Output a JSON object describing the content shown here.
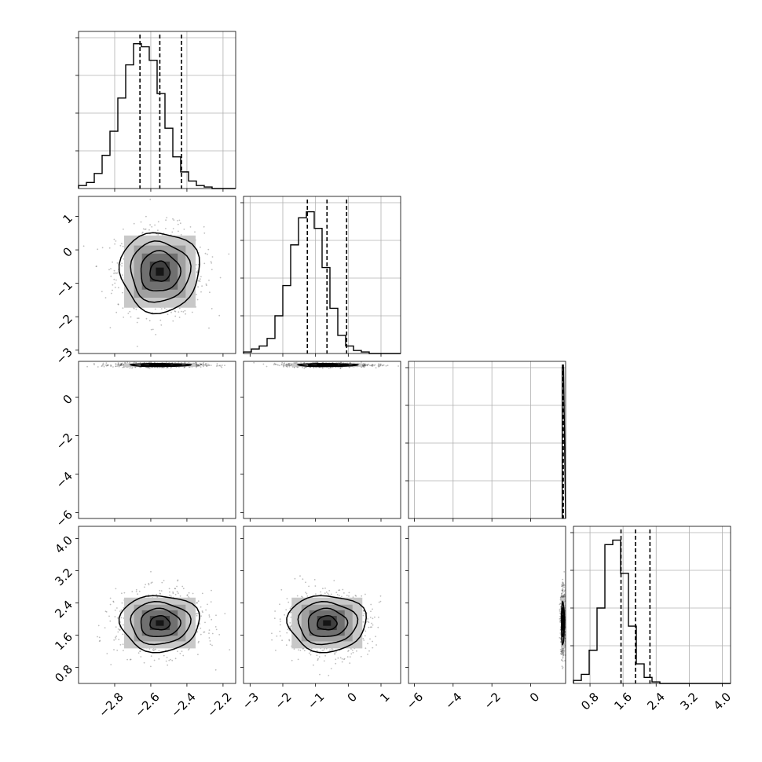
{
  "chart_data": {
    "type": "corner",
    "parameters": 4,
    "axes": [
      {
        "index": 0,
        "range": [
          -3.0,
          -2.13
        ],
        "ticks": [
          -2.8,
          -2.6,
          -2.4,
          -2.2
        ],
        "tick_labels": [
          "−2.8",
          "−2.6",
          "−2.4",
          "−2.2"
        ],
        "median": -2.55,
        "q16": -2.66,
        "q84": -2.43
      },
      {
        "index": 1,
        "range": [
          -3.2,
          1.6
        ],
        "ticks_bottom": [
          -3,
          -2,
          -1,
          0,
          1
        ],
        "tick_labels_bottom": [
          "−3",
          "−2",
          "−1",
          "0",
          "1"
        ],
        "ticks_left": [
          -3,
          -2,
          -1,
          0,
          1
        ],
        "tick_labels_left": [
          "−3",
          "−2",
          "−1",
          "0",
          "1"
        ],
        "median": -0.65,
        "q16": -1.25,
        "q84": -0.05
      },
      {
        "index": 2,
        "range": [
          -6.3,
          1.8
        ],
        "ticks": [
          -6,
          -4,
          -2,
          0
        ],
        "tick_labels": [
          "−6",
          "−4",
          "−2",
          "0"
        ],
        "median": 1.66,
        "q16": 1.64,
        "q84": 1.68
      },
      {
        "index": 3,
        "range": [
          0.4,
          4.2
        ],
        "ticks": [
          0.8,
          1.6,
          2.4,
          3.2,
          4.0
        ],
        "tick_labels": [
          "0.8",
          "1.6",
          "2.4",
          "3.2",
          "4.0"
        ],
        "median": 1.9,
        "q16": 1.55,
        "q84": 2.25
      }
    ],
    "histograms": [
      {
        "param": 0,
        "bins_start": -3.0,
        "bin_width": 0.0435,
        "counts": [
          2,
          4,
          10,
          22,
          38,
          60,
          82,
          96,
          94,
          85,
          63,
          40,
          21,
          11,
          5,
          2,
          1,
          0,
          0,
          0
        ],
        "ymax": 100
      },
      {
        "param": 1,
        "bins_start": -3.2,
        "bin_width": 0.24,
        "counts": [
          1,
          3,
          5,
          10,
          25,
          45,
          72,
          90,
          94,
          83,
          57,
          30,
          12,
          5,
          2,
          1,
          0,
          0,
          0,
          0
        ],
        "ymax": 100
      },
      {
        "param": 2,
        "bins_start": 1.625,
        "bin_width": 0.07,
        "counts": [
          100
        ],
        "ymax": 100
      },
      {
        "param": 3,
        "bins_start": 0.4,
        "bin_width": 0.19,
        "counts": [
          2,
          6,
          22,
          50,
          92,
          95,
          73,
          38,
          13,
          4,
          1,
          0,
          0,
          0,
          0,
          0,
          0,
          0,
          0,
          0
        ],
        "ymax": 100
      }
    ],
    "scatter_2d": [
      {
        "x": 0,
        "y": 1,
        "center": [
          -2.55,
          -0.65
        ],
        "sigma": [
          0.11,
          0.6
        ],
        "contours": [
          0.5,
          1.0,
          1.5,
          2.0
        ]
      },
      {
        "x": 0,
        "y": 2,
        "center": [
          -2.55,
          1.66
        ],
        "sigma": [
          0.11,
          0.05
        ],
        "contours": [
          0.5,
          1.0,
          1.5
        ]
      },
      {
        "x": 1,
        "y": 2,
        "center": [
          -0.65,
          1.66
        ],
        "sigma": [
          0.6,
          0.05
        ],
        "contours": [
          0.5,
          1.0,
          1.5
        ]
      },
      {
        "x": 0,
        "y": 3,
        "center": [
          -2.55,
          1.9
        ],
        "sigma": [
          0.11,
          0.35
        ],
        "contours": [
          0.5,
          1.0,
          1.5,
          2.0
        ]
      },
      {
        "x": 1,
        "y": 3,
        "center": [
          -0.65,
          1.9
        ],
        "sigma": [
          0.6,
          0.35
        ],
        "contours": [
          0.5,
          1.0,
          1.5,
          2.0
        ]
      },
      {
        "x": 2,
        "y": 3,
        "center": [
          1.66,
          1.9
        ],
        "sigma": [
          0.05,
          0.35
        ],
        "contours": [
          0.5,
          1.0,
          1.5
        ]
      }
    ],
    "colors": {
      "frame": "#000000",
      "grid": "#b0b0b0",
      "density_dark": "#111111",
      "density_light": "#bbbbbb"
    },
    "grid": true
  }
}
